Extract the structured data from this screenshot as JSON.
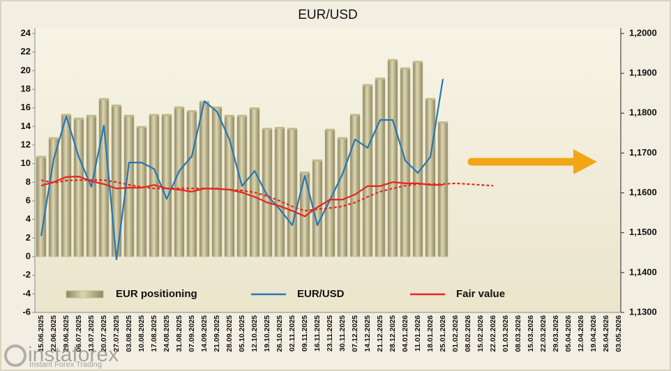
{
  "chart_data": {
    "type": "bar",
    "title": "EUR/USD",
    "categories": [
      "15.06.2025",
      "22.06.2025",
      "29.06.2025",
      "06.07.2025",
      "13.07.2025",
      "20.07.2025",
      "27.07.2025",
      "03.08.2025",
      "10.08.2025",
      "17.08.2025",
      "24.08.2025",
      "31.08.2025",
      "07.09.2025",
      "14.09.2025",
      "21.09.2025",
      "28.09.2025",
      "05.10.2025",
      "12.10.2025",
      "19.10.2025",
      "26.10.2025",
      "02.11.2025",
      "09.11.2025",
      "16.11.2025",
      "23.11.2025",
      "30.11.2025",
      "07.12.2025",
      "14.12.2025",
      "21.12.2025",
      "28.12.2025",
      "04.01.2026",
      "11.01.2026",
      "18.01.2026",
      "25.01.2026",
      "01.02.2026",
      "08.02.2026",
      "15.02.2026",
      "22.02.2026",
      "01.03.2026",
      "08.03.2026",
      "15.03.2026",
      "22.03.2026",
      "29.03.2026",
      "05.04.2026",
      "12.04.2026",
      "19.04.2026",
      "26.04.2026",
      "03.05.2026"
    ],
    "series": [
      {
        "name": "EUR positioning",
        "type": "bar",
        "color": "#c2b98e",
        "values": [
          10.7,
          12.7,
          15.2,
          14.8,
          15.1,
          16.9,
          16.2,
          15.1,
          13.9,
          15.2,
          15.2,
          16.0,
          15.6,
          16.6,
          16.0,
          15.1,
          15.1,
          15.9,
          13.7,
          13.8,
          13.7,
          9.0,
          10.3,
          13.6,
          12.7,
          15.2,
          18.4,
          19.1,
          21.1,
          20.2,
          20.9,
          16.9,
          14.4,
          null,
          null,
          null,
          null,
          null,
          null,
          null,
          null,
          null,
          null,
          null,
          null,
          null,
          null
        ]
      },
      {
        "name": "EUR/USD",
        "type": "line",
        "axis": "y2",
        "color": "#2378b5",
        "linestyle": "solid",
        "values": [
          1.1492,
          1.1685,
          1.1792,
          1.169,
          1.1615,
          1.1769,
          1.1433,
          1.1676,
          1.1676,
          1.166,
          1.1585,
          1.1655,
          1.1692,
          1.183,
          1.1804,
          1.1734,
          1.1617,
          1.1655,
          1.1594,
          1.1559,
          1.1519,
          1.1643,
          1.1519,
          1.1582,
          1.1647,
          1.1734,
          1.1713,
          1.1783,
          1.1783,
          1.1681,
          1.165,
          1.169,
          1.1886,
          null,
          null,
          null,
          null,
          null,
          null,
          null,
          null,
          null,
          null,
          null,
          null,
          null,
          null
        ]
      },
      {
        "name": "Fair value",
        "type": "line",
        "axis": "y2",
        "color": "#e8231f",
        "linestyle": "solid",
        "values": [
          1.1618,
          1.1627,
          1.164,
          1.1641,
          1.1629,
          1.1622,
          1.1611,
          1.1613,
          1.1613,
          1.162,
          1.1611,
          1.1608,
          1.1603,
          1.1611,
          1.161,
          1.1608,
          1.1601,
          1.159,
          1.1576,
          1.1567,
          1.1555,
          1.1541,
          1.1564,
          1.1583,
          1.1583,
          1.1596,
          1.1617,
          1.1617,
          1.1627,
          1.1624,
          1.1624,
          1.162,
          1.162,
          null,
          null,
          null,
          null,
          null,
          null,
          null,
          null,
          null,
          null,
          null,
          null,
          null,
          null
        ]
      },
      {
        "type": "line",
        "axis": "y2",
        "color": "#e8231f",
        "linestyle": "dashed",
        "values": [
          1.1632,
          1.1625,
          1.1631,
          1.1632,
          1.1632,
          1.1632,
          1.1627,
          1.162,
          1.1615,
          1.1611,
          1.1611,
          1.1611,
          1.1611,
          1.1611,
          1.1611,
          1.1608,
          1.1606,
          1.1601,
          1.1592,
          1.158,
          1.1566,
          1.1555,
          1.1559,
          1.1562,
          1.1566,
          1.1576,
          1.159,
          1.1603,
          1.1611,
          1.1618,
          1.1622,
          1.1622,
          1.1622,
          1.1624,
          1.1622,
          1.162,
          1.1618,
          null,
          null,
          null,
          null,
          null,
          null,
          null,
          null,
          null,
          null
        ]
      }
    ],
    "ylim": [
      -6,
      24
    ],
    "yticks": [
      -6,
      -4,
      -2,
      0,
      2,
      4,
      6,
      8,
      10,
      12,
      14,
      16,
      18,
      20,
      22,
      24
    ],
    "y2lim": [
      1.13,
      1.2
    ],
    "y2ticks": [
      {
        "value": 1.13,
        "label": "1,1300"
      },
      {
        "value": 1.14,
        "label": "1,1400"
      },
      {
        "value": 1.15,
        "label": "1,1500"
      },
      {
        "value": 1.16,
        "label": "1,1600"
      },
      {
        "value": 1.17,
        "label": "1,1700"
      },
      {
        "value": 1.18,
        "label": "1,1800"
      },
      {
        "value": 1.19,
        "label": "1,1900"
      },
      {
        "value": 1.2,
        "label": "1,2000"
      }
    ],
    "grid": false
  },
  "watermark": {
    "brand": "instaforex",
    "tagline": "Instant Forex Trading"
  }
}
